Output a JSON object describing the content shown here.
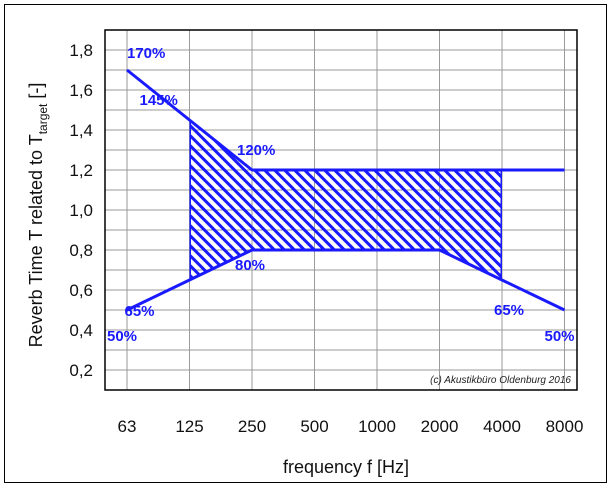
{
  "chart_data": {
    "type": "line",
    "x": [
      "63",
      "125",
      "250",
      "500",
      "1000",
      "2000",
      "4000",
      "8000"
    ],
    "xlabel": "frequency f [Hz]",
    "ylabel_parts": {
      "pre": "Reverb Time T related to T",
      "sub": "target",
      "post": " [-]"
    },
    "y_ticks": [
      "0,2",
      "0,4",
      "0,6",
      "0,8",
      "1,0",
      "1,2",
      "1,4",
      "1,6",
      "1,8"
    ],
    "ylim": [
      0.1,
      1.9
    ],
    "grid": true,
    "series": [
      {
        "values": [
          1.7,
          1.45,
          1.2,
          1.2,
          1.2,
          1.2,
          1.2,
          1.2
        ]
      },
      {
        "values": [
          0.5,
          0.65,
          0.8,
          0.8,
          0.8,
          0.8,
          0.65,
          0.5
        ]
      }
    ],
    "hatched_region": {
      "x_from": "125",
      "x_to": "4000",
      "upper": [
        1.45,
        1.2,
        1.2,
        1.2,
        1.2,
        1.2
      ],
      "lower": [
        0.65,
        0.8,
        0.8,
        0.8,
        0.8,
        0.65
      ]
    },
    "annotations": [
      {
        "text": "170%",
        "x": "63",
        "y": 1.7
      },
      {
        "text": "145%",
        "x": "125",
        "y": 1.45
      },
      {
        "text": "120%",
        "x": "250",
        "y": 1.2
      },
      {
        "text": "80%",
        "x": "250",
        "y": 0.8
      },
      {
        "text": "65%",
        "x": "125",
        "y": 0.65
      },
      {
        "text": "65%",
        "x": "4000",
        "y": 0.65
      },
      {
        "text": "50%",
        "x": "63",
        "y": 0.5
      },
      {
        "text": "50%",
        "x": "8000",
        "y": 0.5
      }
    ],
    "copyright": "(c) Akustikbüro Oldenburg 2016",
    "colors": {
      "series": "#1a1aff",
      "grid": "#9a9a9a",
      "axis": "#000000"
    }
  }
}
